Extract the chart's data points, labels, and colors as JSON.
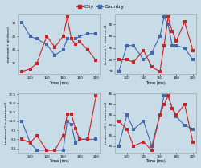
{
  "bg_color": "#c8dce8",
  "subplot_bg": "#c8dce8",
  "time_label": "Time (ms)",
  "x_ticks": [
    120,
    140,
    160,
    180,
    200
  ],
  "x_city": [
    110,
    120,
    128,
    140,
    150,
    160,
    165,
    170,
    175,
    180,
    190,
    200
  ],
  "x_country": [
    110,
    120,
    128,
    140,
    150,
    160,
    165,
    170,
    175,
    180,
    190,
    200
  ],
  "subplot1_ylabel": "treatment + attribute1",
  "subplot1_city_y": [
    12,
    13,
    15,
    25,
    21,
    25,
    32,
    24,
    22,
    23,
    20,
    16
  ],
  "subplot1_country_y": [
    30,
    25,
    24,
    22,
    18,
    20,
    24,
    24,
    24,
    25,
    26,
    26
  ],
  "subplot2_ylabel": "treatment + treatment1",
  "subplot2_city_y": [
    20,
    20,
    19,
    24,
    17,
    15,
    26,
    38,
    32,
    28,
    36,
    24
  ],
  "subplot2_country_y": [
    15,
    26,
    26,
    20,
    23,
    30,
    38,
    35,
    26,
    26,
    25,
    20
  ],
  "subplot3_ylabel": "treatment1 + treatment2",
  "subplot3_city_y": [
    5,
    4,
    6,
    2,
    2,
    6,
    12,
    12,
    8,
    5,
    5,
    17
  ],
  "subplot3_country_y": [
    10,
    4,
    2,
    2,
    2,
    2,
    10,
    9,
    4,
    5,
    5,
    5
  ],
  "subplot4_ylabel": "treatment1 + treatment2",
  "subplot4_city_y": [
    32,
    28,
    20,
    22,
    18,
    35,
    40,
    44,
    38,
    35,
    40,
    22
  ],
  "subplot4_country_y": [
    20,
    35,
    28,
    32,
    20,
    35,
    44,
    44,
    38,
    34,
    30,
    28
  ],
  "city_color": "#cc2222",
  "country_color": "#4466aa",
  "marker": "s",
  "marker_size": 2.5,
  "line_width": 0.8
}
